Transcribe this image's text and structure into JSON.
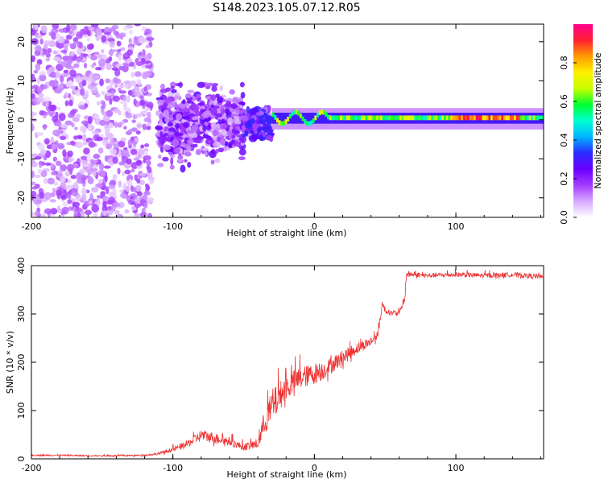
{
  "figure_title": "S148.2023.105.07.12.R05",
  "chart_data": [
    {
      "type": "heatmap",
      "xlabel": "Height of straight line (km)",
      "ylabel": "Frequency (Hz)",
      "xlim": [
        -200,
        162
      ],
      "ylim": [
        -25,
        24.5
      ],
      "xticks": [
        -200,
        -100,
        0,
        100
      ],
      "xtick_labels": [
        "-200",
        "-100",
        "0",
        "100"
      ],
      "yticks": [
        -20,
        -10,
        0,
        10,
        20
      ],
      "ytick_labels": [
        "-20",
        "-10",
        "0",
        "10",
        "20"
      ],
      "colorbar": {
        "label": "Normalized spectral amplitude",
        "range": [
          0,
          1
        ],
        "ticks": [
          0.0,
          0.2,
          0.4,
          0.6,
          0.8
        ],
        "tick_labels": [
          "0.0",
          "0.2",
          "0.4",
          "0.6",
          "0.8"
        ],
        "colormap": [
          "#ffffff",
          "#d7a9ff",
          "#a43bff",
          "#6a00ff",
          "#2b2bff",
          "#00b4ff",
          "#00ffd2",
          "#00ff30",
          "#c8ff00",
          "#fff000",
          "#ff9a00",
          "#ff2030",
          "#ff0090"
        ]
      },
      "regions": [
        {
          "x": [
            -200,
            -115
          ],
          "f": [
            -25,
            24.5
          ],
          "level": 0.12,
          "pattern": "noise"
        },
        {
          "x": [
            -110,
            -50
          ],
          "f": [
            -17,
            9
          ],
          "level": 0.18,
          "pattern": "blob"
        },
        {
          "x": [
            -50,
            -30
          ],
          "f": [
            -5,
            3
          ],
          "level": 0.32,
          "pattern": "transition"
        },
        {
          "x": [
            -30,
            162
          ],
          "f": [
            -0.5,
            1.5
          ],
          "level": 0.6,
          "pattern": "tone"
        }
      ],
      "tone_frequency_hz": 0.5
    },
    {
      "type": "line",
      "xlabel": "Height of straight line (km)",
      "ylabel": "SNR (10 * v/v)",
      "xlim": [
        -200,
        162
      ],
      "ylim": [
        0,
        400
      ],
      "xticks": [
        -200,
        -100,
        0,
        100
      ],
      "xtick_labels": [
        "-200",
        "-100",
        "0",
        "100"
      ],
      "yticks": [
        0,
        100,
        200,
        300,
        400
      ],
      "ytick_labels": [
        "0",
        "100",
        "200",
        "300",
        "400"
      ],
      "color": "#ee3333",
      "x": [
        -200,
        -180,
        -160,
        -140,
        -120,
        -110,
        -100,
        -90,
        -80,
        -70,
        -60,
        -50,
        -40,
        -35,
        -30,
        -25,
        -20,
        -15,
        -10,
        -5,
        0,
        5,
        10,
        20,
        30,
        40,
        45,
        48,
        50,
        55,
        60,
        64,
        65,
        70,
        80,
        100,
        120,
        140,
        162
      ],
      "y": [
        7,
        7,
        6,
        6,
        7,
        10,
        18,
        28,
        45,
        40,
        33,
        22,
        28,
        70,
        95,
        120,
        140,
        150,
        160,
        165,
        170,
        175,
        185,
        205,
        225,
        240,
        255,
        320,
        305,
        300,
        300,
        330,
        380,
        380,
        378,
        380,
        378,
        380,
        375
      ],
      "noise": [
        3,
        3,
        3,
        3,
        3,
        5,
        10,
        15,
        25,
        22,
        18,
        14,
        22,
        55,
        70,
        60,
        50,
        50,
        50,
        45,
        45,
        40,
        35,
        30,
        25,
        20,
        15,
        15,
        12,
        10,
        10,
        10,
        15,
        10,
        10,
        10,
        10,
        10,
        10
      ]
    }
  ]
}
